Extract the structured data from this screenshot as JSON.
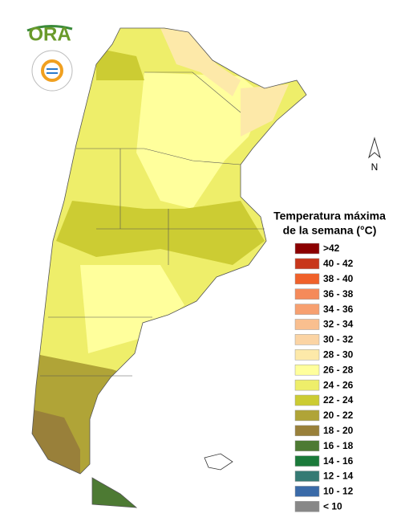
{
  "logo": {
    "text": "ORA"
  },
  "compass": {
    "label": "N"
  },
  "legend": {
    "title": [
      "Temperatura máxima",
      "de la semana (°C)"
    ],
    "items": [
      {
        "label": ">42",
        "color": "#8b0000"
      },
      {
        "label": "40 - 42",
        "color": "#c8361a"
      },
      {
        "label": "38 - 40",
        "color": "#f0612a"
      },
      {
        "label": "36 - 38",
        "color": "#f58a5a"
      },
      {
        "label": "34 - 36",
        "color": "#f7a070"
      },
      {
        "label": "32 - 34",
        "color": "#f9bf8f"
      },
      {
        "label": "30 - 32",
        "color": "#fbd4a4"
      },
      {
        "label": "28 - 30",
        "color": "#fde9a9"
      },
      {
        "label": "26 - 28",
        "color": "#ffff9c"
      },
      {
        "label": "24 - 26",
        "color": "#eeee6a"
      },
      {
        "label": "22 - 24",
        "color": "#cccc33"
      },
      {
        "label": "20 - 22",
        "color": "#b0a437"
      },
      {
        "label": "18 - 20",
        "color": "#99803a"
      },
      {
        "label": "16 - 18",
        "color": "#4d7a33"
      },
      {
        "label": "14 - 16",
        "color": "#1a7a3a"
      },
      {
        "label": "12 - 14",
        "color": "#357a74"
      },
      {
        "label": "10 - 12",
        "color": "#3a6aa8"
      },
      {
        "label": "< 10",
        "color": "#888888"
      }
    ]
  }
}
